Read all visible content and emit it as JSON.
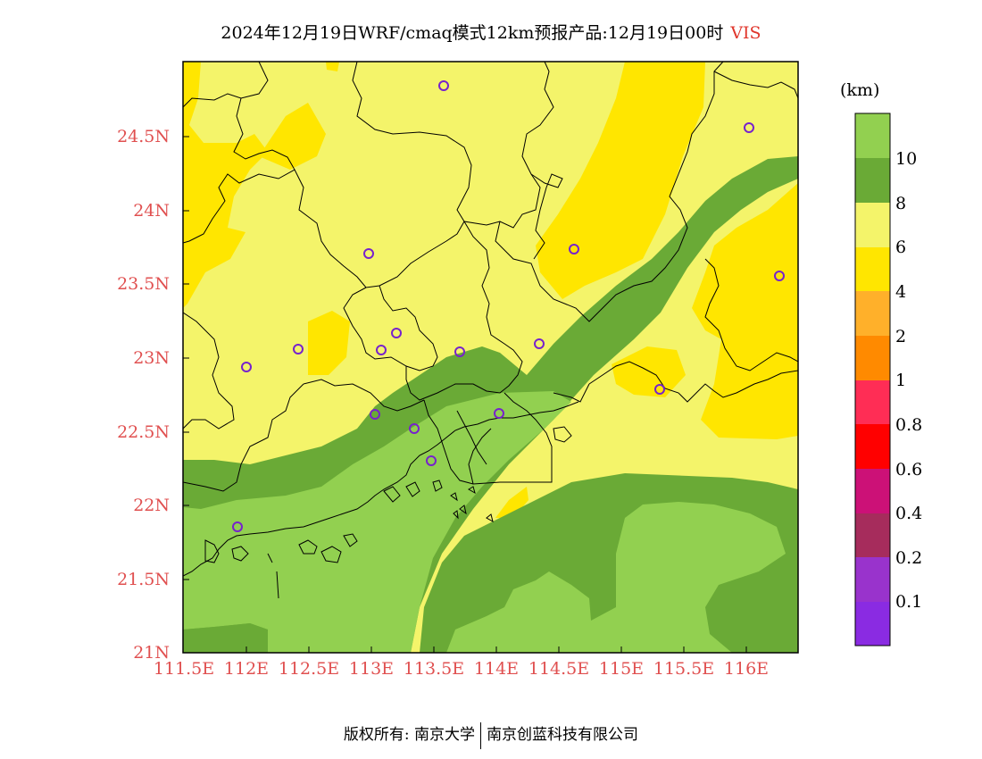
{
  "title": "2024年12月19日WRF/cmaq模式12km预报产品:12月19日00时",
  "variable": "VIS",
  "y_ticks": [
    "24.5N",
    "24N",
    "23.5N",
    "23N",
    "22.5N",
    "22N",
    "21.5N",
    "21N"
  ],
  "x_ticks": [
    "111.5E",
    "112E",
    "112.5E",
    "113E",
    "113.5E",
    "114E",
    "114.5E",
    "115E",
    "115.5E",
    "116E"
  ],
  "colorbar": {
    "unit": "(km)",
    "labels": [
      "10",
      "8",
      "6",
      "4",
      "2",
      "1",
      "0.8",
      "0.6",
      "0.4",
      "0.2",
      "0.1"
    ],
    "colors": [
      "#92d050",
      "#6aaa36",
      "#f4f46a",
      "#ffe600",
      "#ffb02a",
      "#ff8a00",
      "#ff2d55",
      "#ff0000",
      "#cc1177",
      "#a62c5c",
      "#9933cc",
      "#8a2be2"
    ]
  },
  "map_colors": {
    "over_10": "#92d050",
    "8_10": "#6aaa36",
    "6_8": "#f4f46a",
    "4_6": "#ffe600",
    "station_marker": "#7722cc"
  },
  "footer": {
    "copyright": "版权所有: 南京大学",
    "company": "南京创蓝科技有限公司"
  }
}
